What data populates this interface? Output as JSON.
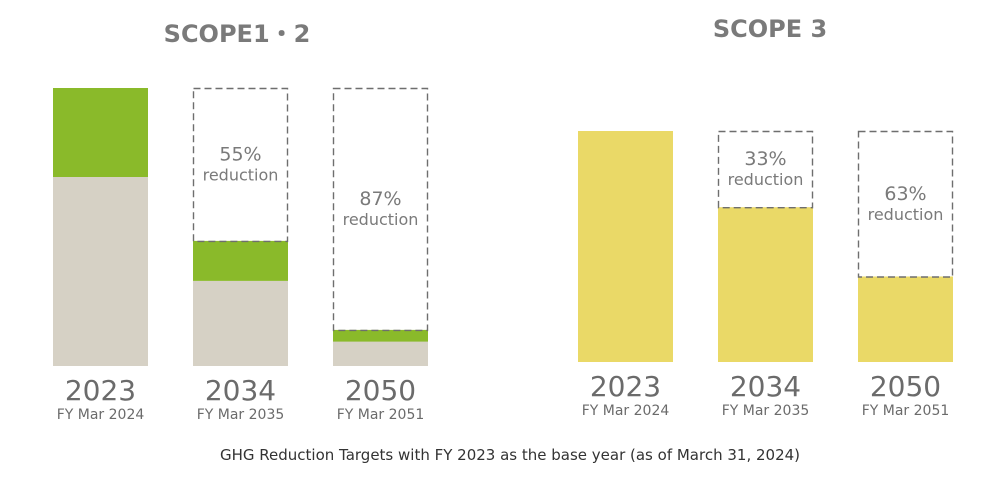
{
  "caption": "GHG Reduction Targets with FY 2023 as the base year (as of March 31, 2024)",
  "colors": {
    "scope1_2_green": "#8aba2a",
    "scope1_2_gray": "#d6d1c5",
    "scope3_yellow": "#ead967",
    "dashed_border": "#6e6e6e",
    "text": "#6b6b6b"
  },
  "chart_data": [
    {
      "type": "bar",
      "title": "SCOPE1・2",
      "categories": [
        "2023",
        "2034",
        "2050"
      ],
      "category_sublabels": [
        "FY Mar 2024",
        "FY Mar 2035",
        "FY Mar 2051"
      ],
      "series": [
        {
          "values": [
            68,
            30.6,
            8.8
          ]
        },
        {
          "values": [
            32,
            14.4,
            4.2
          ]
        }
      ],
      "totals_relative": [
        100,
        45,
        13
      ],
      "reductions": [
        null,
        {
          "pct": "55%",
          "label": "reduction"
        },
        {
          "pct": "87%",
          "label": "reduction"
        }
      ],
      "ylim": [
        0,
        100
      ],
      "grid": false
    },
    {
      "type": "bar",
      "title": "SCOPE 3",
      "categories": [
        "2023",
        "2034",
        "2050"
      ],
      "category_sublabels": [
        "FY Mar 2024",
        "FY Mar 2035",
        "FY Mar 2051"
      ],
      "series": [
        {
          "values": [
            100,
            67,
            37
          ]
        }
      ],
      "totals_relative": [
        100,
        67,
        37
      ],
      "reductions": [
        null,
        {
          "pct": "33%",
          "label": "reduction"
        },
        {
          "pct": "63%",
          "label": "reduction"
        }
      ],
      "ylim": [
        0,
        100
      ],
      "grid": false
    }
  ]
}
